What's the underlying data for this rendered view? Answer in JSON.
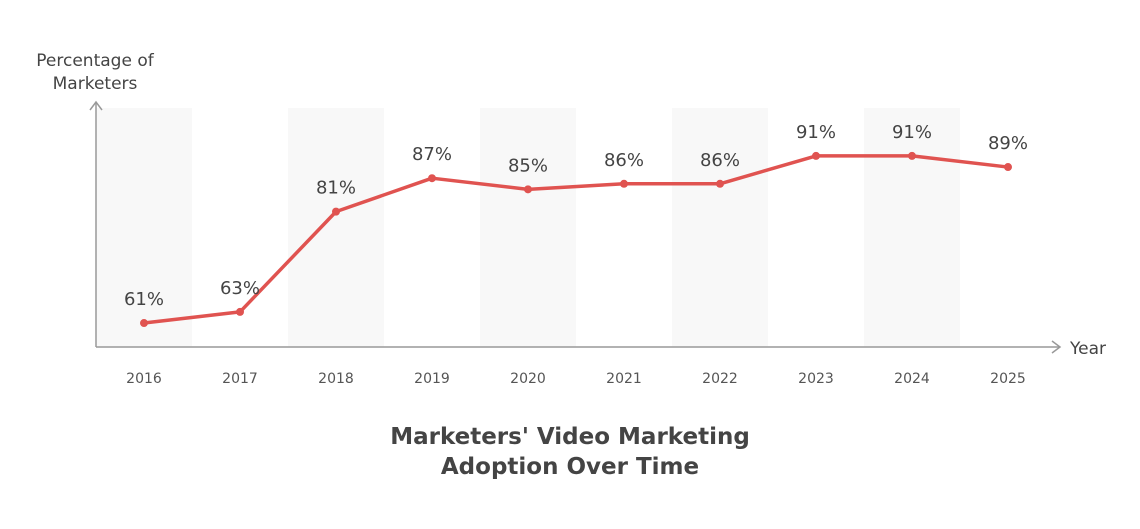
{
  "chart_data": {
    "type": "line",
    "title": "Marketers' Video Marketing Adoption Over Time",
    "y_label": "Percentage of Marketers",
    "x_label": "Year",
    "categories": [
      "2016",
      "2017",
      "2018",
      "2019",
      "2020",
      "2021",
      "2022",
      "2023",
      "2024",
      "2025"
    ],
    "series": [
      {
        "name": "Percentage of Marketers",
        "color": "#e05350",
        "values": [
          61,
          63,
          81,
          87,
          85,
          86,
          86,
          91,
          91,
          89
        ],
        "value_labels": [
          "61%",
          "63%",
          "81%",
          "87%",
          "85%",
          "86%",
          "86%",
          "91%",
          "91%",
          "89%"
        ]
      }
    ],
    "ylim": [
      56.7,
      99.6
    ],
    "grid": false
  }
}
